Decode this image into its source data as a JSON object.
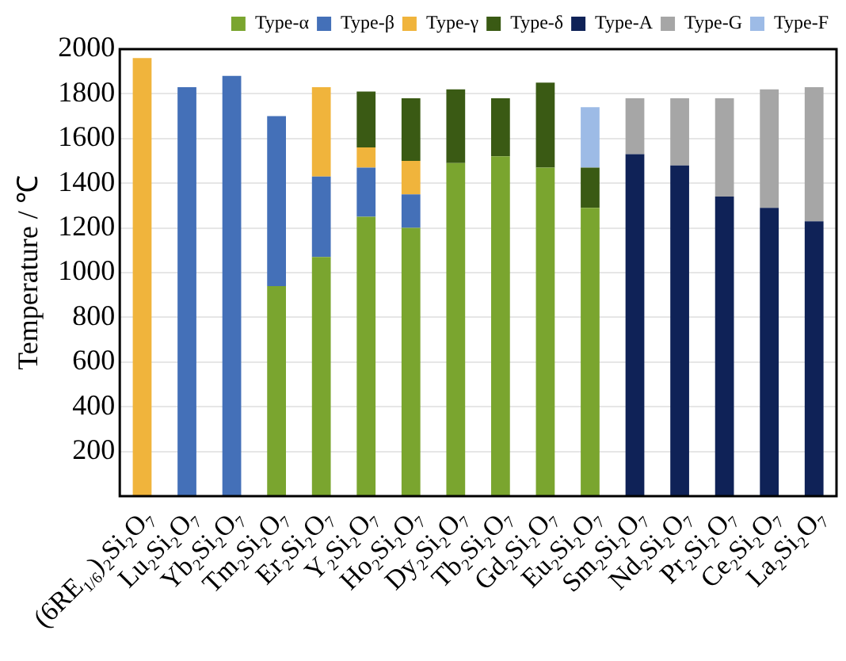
{
  "chart_data": {
    "type": "bar",
    "stacked": true,
    "ylabel": "Temperature / ℃",
    "categories": [
      "(6RE$_{1/6}$)₂Si₂O₇",
      "Lu₂Si₂O₇",
      "Yb₂Si₂O₇",
      "Tm₂Si₂O₇",
      "Er₂Si₂O₇",
      "Y₂Si₂O₇",
      "Ho₂Si₂O₇",
      "Dy₂Si₂O₇",
      "Tb₂Si₂O₇",
      "Gd₂Si₂O₇",
      "Eu₂Si₂O₇",
      "Sm₂Si₂O₇",
      "Nd₂Si₂O₇",
      "Pr₂Si₂O₇",
      "Ce₂Si₂O₇",
      "La₂Si₂O₇"
    ],
    "series": [
      {
        "name": "Type-α",
        "color": "#7aa52f",
        "values": [
          null,
          null,
          null,
          940,
          1070,
          1250,
          1200,
          1490,
          1520,
          1470,
          1290,
          null,
          null,
          null,
          null,
          null
        ]
      },
      {
        "name": "Type-β",
        "color": "#4470b8",
        "values": [
          null,
          1830,
          1880,
          760,
          360,
          220,
          150,
          null,
          null,
          null,
          null,
          null,
          null,
          null,
          null,
          null
        ]
      },
      {
        "name": "Type-γ",
        "color": "#f0b43c",
        "values": [
          1960,
          null,
          null,
          null,
          400,
          90,
          150,
          null,
          null,
          null,
          null,
          null,
          null,
          null,
          null,
          null
        ]
      },
      {
        "name": "Type-δ",
        "color": "#3a5a14",
        "values": [
          null,
          null,
          null,
          null,
          null,
          250,
          280,
          330,
          260,
          380,
          180,
          null,
          null,
          null,
          null,
          null
        ]
      },
      {
        "name": "Type-A",
        "color": "#0f2257",
        "values": [
          null,
          null,
          null,
          null,
          null,
          null,
          null,
          null,
          null,
          null,
          null,
          1530,
          1480,
          1340,
          1290,
          1230
        ]
      },
      {
        "name": "Type-G",
        "color": "#a6a6a6",
        "values": [
          null,
          null,
          null,
          null,
          null,
          null,
          null,
          null,
          null,
          null,
          null,
          250,
          300,
          440,
          530,
          600
        ]
      },
      {
        "name": "Type-F",
        "color": "#9dbbe6",
        "values": [
          null,
          null,
          null,
          null,
          null,
          null,
          null,
          null,
          null,
          null,
          270,
          null,
          null,
          null,
          null,
          null
        ]
      }
    ],
    "ylim": [
      0,
      2000
    ],
    "yticks": [
      {
        "value": 0,
        "label": null
      },
      200,
      400,
      600,
      800,
      1000,
      1200,
      1400,
      1600,
      1800,
      2000
    ],
    "grid": "y",
    "legend": "top right"
  }
}
